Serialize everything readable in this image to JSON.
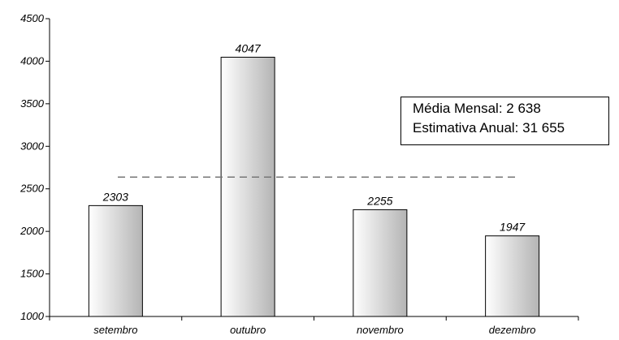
{
  "chart_data": {
    "type": "bar",
    "categories": [
      "setembro",
      "outubro",
      "novembro",
      "dezembro"
    ],
    "values": [
      2303,
      4047,
      2255,
      1947
    ],
    "data_labels": [
      "2303",
      "4047",
      "2255",
      "1947"
    ],
    "yticks": [
      1000,
      1500,
      2000,
      2500,
      3000,
      3500,
      4000,
      4500
    ],
    "ylim": [
      1000,
      4500
    ],
    "reference_line": {
      "value": 2638,
      "style": "dashed"
    },
    "grid": false,
    "annotation": {
      "line1": "Média Mensal: 2 638",
      "line2": "Estimativa Anual: 31 655"
    }
  }
}
